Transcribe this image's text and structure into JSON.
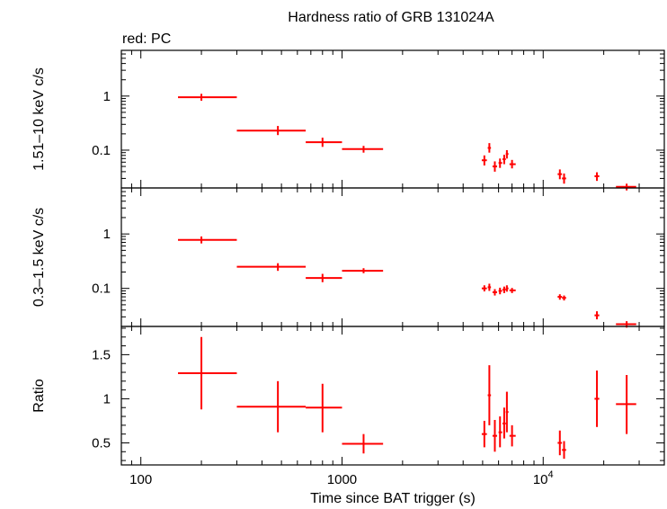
{
  "chart_data": {
    "type": "scatter",
    "title": "Hardness ratio of GRB 131024A",
    "subtitle": "red: PC",
    "xlabel": "Time since BAT trigger (s)",
    "xscale": "log",
    "xlim": [
      80,
      40000
    ],
    "xticks": [
      {
        "value": 100,
        "label": "100",
        "base": "",
        "exp": ""
      },
      {
        "value": 1000,
        "label": "1000",
        "base": "",
        "exp": ""
      },
      {
        "value": 10000,
        "label": "",
        "base": "10",
        "exp": "4"
      }
    ],
    "color": "#ff0000",
    "panels": [
      {
        "name": "hard-band",
        "ylabel": "1.51–10 keV c/s",
        "yscale": "log",
        "ylim": [
          0.02,
          7
        ],
        "yticks": [
          {
            "value": 1,
            "label": "1"
          },
          {
            "value": 0.1,
            "label": "0.1"
          }
        ],
        "points": [
          {
            "x": 200,
            "xlo": 153,
            "xhi": 300,
            "y": 0.95,
            "ylo": 0.82,
            "yhi": 1.1
          },
          {
            "x": 480,
            "xlo": 300,
            "xhi": 660,
            "y": 0.23,
            "ylo": 0.19,
            "yhi": 0.28
          },
          {
            "x": 800,
            "xlo": 660,
            "xhi": 1000,
            "y": 0.14,
            "ylo": 0.115,
            "yhi": 0.17
          },
          {
            "x": 1280,
            "xlo": 1000,
            "xhi": 1600,
            "y": 0.105,
            "ylo": 0.09,
            "yhi": 0.12
          },
          {
            "x": 5100,
            "xlo": 4950,
            "xhi": 5250,
            "y": 0.065,
            "ylo": 0.052,
            "yhi": 0.08
          },
          {
            "x": 5400,
            "xlo": 5300,
            "xhi": 5500,
            "y": 0.11,
            "ylo": 0.09,
            "yhi": 0.135
          },
          {
            "x": 5750,
            "xlo": 5600,
            "xhi": 5900,
            "y": 0.05,
            "ylo": 0.04,
            "yhi": 0.062
          },
          {
            "x": 6100,
            "xlo": 6000,
            "xhi": 6250,
            "y": 0.058,
            "ylo": 0.047,
            "yhi": 0.07
          },
          {
            "x": 6400,
            "xlo": 6280,
            "xhi": 6520,
            "y": 0.068,
            "ylo": 0.055,
            "yhi": 0.082
          },
          {
            "x": 6600,
            "xlo": 6520,
            "xhi": 6720,
            "y": 0.085,
            "ylo": 0.07,
            "yhi": 0.1
          },
          {
            "x": 7000,
            "xlo": 6800,
            "xhi": 7300,
            "y": 0.055,
            "ylo": 0.046,
            "yhi": 0.066
          },
          {
            "x": 12100,
            "xlo": 11800,
            "xhi": 12400,
            "y": 0.036,
            "ylo": 0.029,
            "yhi": 0.044
          },
          {
            "x": 12700,
            "xlo": 12400,
            "xhi": 13000,
            "y": 0.03,
            "ylo": 0.024,
            "yhi": 0.037
          },
          {
            "x": 18500,
            "xlo": 18000,
            "xhi": 19000,
            "y": 0.033,
            "ylo": 0.027,
            "yhi": 0.039
          },
          {
            "x": 26000,
            "xlo": 23000,
            "xhi": 29000,
            "y": 0.021,
            "ylo": 0.018,
            "yhi": 0.024
          }
        ]
      },
      {
        "name": "soft-band",
        "ylabel": "0.3–1.5 keV c/s",
        "yscale": "log",
        "ylim": [
          0.02,
          7
        ],
        "yticks": [
          {
            "value": 1,
            "label": "1"
          },
          {
            "value": 0.1,
            "label": "0.1"
          }
        ],
        "points": [
          {
            "x": 200,
            "xlo": 153,
            "xhi": 300,
            "y": 0.78,
            "ylo": 0.67,
            "yhi": 0.9
          },
          {
            "x": 480,
            "xlo": 300,
            "xhi": 660,
            "y": 0.25,
            "ylo": 0.21,
            "yhi": 0.29
          },
          {
            "x": 800,
            "xlo": 660,
            "xhi": 1000,
            "y": 0.155,
            "ylo": 0.13,
            "yhi": 0.185
          },
          {
            "x": 1280,
            "xlo": 1000,
            "xhi": 1600,
            "y": 0.21,
            "ylo": 0.19,
            "yhi": 0.235
          },
          {
            "x": 5100,
            "xlo": 4950,
            "xhi": 5250,
            "y": 0.1,
            "ylo": 0.088,
            "yhi": 0.114
          },
          {
            "x": 5400,
            "xlo": 5300,
            "xhi": 5500,
            "y": 0.105,
            "ylo": 0.09,
            "yhi": 0.122
          },
          {
            "x": 5750,
            "xlo": 5600,
            "xhi": 5900,
            "y": 0.085,
            "ylo": 0.074,
            "yhi": 0.097
          },
          {
            "x": 6100,
            "xlo": 6000,
            "xhi": 6250,
            "y": 0.09,
            "ylo": 0.078,
            "yhi": 0.103
          },
          {
            "x": 6400,
            "xlo": 6280,
            "xhi": 6520,
            "y": 0.095,
            "ylo": 0.082,
            "yhi": 0.108
          },
          {
            "x": 6600,
            "xlo": 6520,
            "xhi": 6720,
            "y": 0.1,
            "ylo": 0.087,
            "yhi": 0.114
          },
          {
            "x": 7000,
            "xlo": 6800,
            "xhi": 7300,
            "y": 0.092,
            "ylo": 0.082,
            "yhi": 0.102
          },
          {
            "x": 12100,
            "xlo": 11800,
            "xhi": 12400,
            "y": 0.07,
            "ylo": 0.062,
            "yhi": 0.078
          },
          {
            "x": 12700,
            "xlo": 12400,
            "xhi": 13000,
            "y": 0.067,
            "ylo": 0.06,
            "yhi": 0.074
          },
          {
            "x": 18500,
            "xlo": 18000,
            "xhi": 19000,
            "y": 0.032,
            "ylo": 0.027,
            "yhi": 0.038
          },
          {
            "x": 26000,
            "xlo": 23000,
            "xhi": 29000,
            "y": 0.022,
            "ylo": 0.019,
            "yhi": 0.025
          }
        ]
      },
      {
        "name": "ratio",
        "ylabel": "Ratio",
        "yscale": "linear",
        "ylim": [
          0.25,
          1.82
        ],
        "yticks": [
          {
            "value": 0.5,
            "label": "0.5"
          },
          {
            "value": 1,
            "label": "1"
          },
          {
            "value": 1.5,
            "label": "1.5"
          }
        ],
        "points": [
          {
            "x": 200,
            "xlo": 153,
            "xhi": 300,
            "y": 1.29,
            "ylo": 0.88,
            "yhi": 1.7
          },
          {
            "x": 480,
            "xlo": 300,
            "xhi": 660,
            "y": 0.91,
            "ylo": 0.62,
            "yhi": 1.2
          },
          {
            "x": 800,
            "xlo": 660,
            "xhi": 1000,
            "y": 0.9,
            "ylo": 0.62,
            "yhi": 1.17
          },
          {
            "x": 1280,
            "xlo": 1000,
            "xhi": 1600,
            "y": 0.49,
            "ylo": 0.38,
            "yhi": 0.6
          },
          {
            "x": 5100,
            "xlo": 4950,
            "xhi": 5250,
            "y": 0.6,
            "ylo": 0.45,
            "yhi": 0.75
          },
          {
            "x": 5400,
            "xlo": 5300,
            "xhi": 5500,
            "y": 1.04,
            "ylo": 0.7,
            "yhi": 1.38
          },
          {
            "x": 5750,
            "xlo": 5600,
            "xhi": 5900,
            "y": 0.58,
            "ylo": 0.4,
            "yhi": 0.76
          },
          {
            "x": 6100,
            "xlo": 6000,
            "xhi": 6250,
            "y": 0.62,
            "ylo": 0.45,
            "yhi": 0.8
          },
          {
            "x": 6400,
            "xlo": 6280,
            "xhi": 6520,
            "y": 0.72,
            "ylo": 0.55,
            "yhi": 0.9
          },
          {
            "x": 6600,
            "xlo": 6520,
            "xhi": 6720,
            "y": 0.85,
            "ylo": 0.62,
            "yhi": 1.08
          },
          {
            "x": 7000,
            "xlo": 6800,
            "xhi": 7300,
            "y": 0.58,
            "ylo": 0.46,
            "yhi": 0.7
          },
          {
            "x": 12100,
            "xlo": 11800,
            "xhi": 12400,
            "y": 0.5,
            "ylo": 0.36,
            "yhi": 0.64
          },
          {
            "x": 12700,
            "xlo": 12400,
            "xhi": 13000,
            "y": 0.42,
            "ylo": 0.32,
            "yhi": 0.52
          },
          {
            "x": 18500,
            "xlo": 18000,
            "xhi": 19000,
            "y": 1.0,
            "ylo": 0.68,
            "yhi": 1.32
          },
          {
            "x": 26000,
            "xlo": 23000,
            "xhi": 29000,
            "y": 0.94,
            "ylo": 0.6,
            "yhi": 1.27
          }
        ]
      }
    ]
  }
}
